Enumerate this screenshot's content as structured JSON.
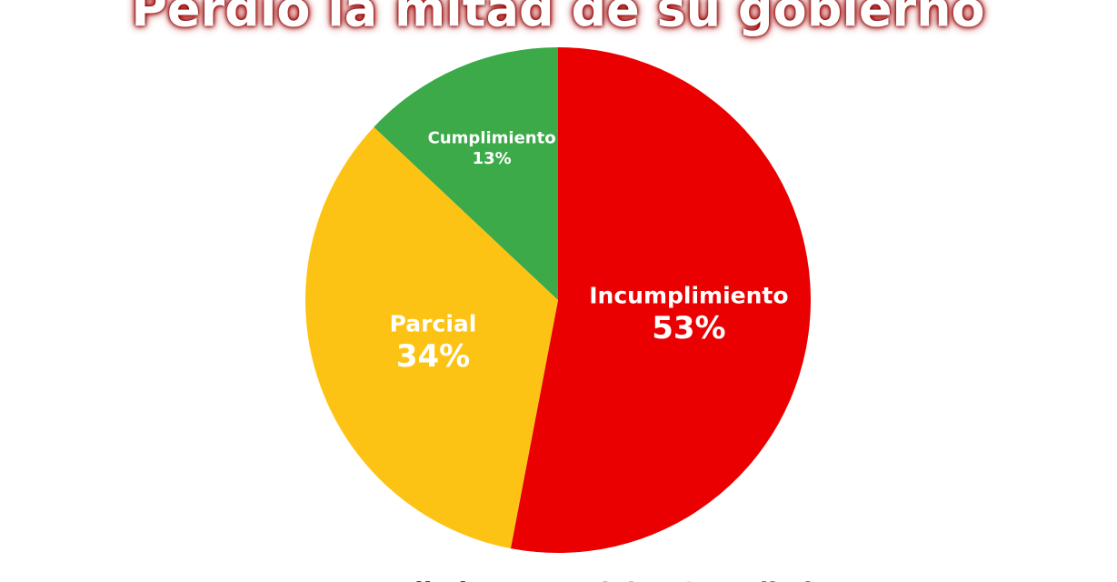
{
  "chart_data": {
    "type": "pie",
    "title": "Perdió la mitad de su gobierno",
    "categories": [
      "Incumplimiento",
      "Parcial",
      "Cumplimiento"
    ],
    "values": [
      53,
      34,
      13
    ],
    "value_labels": [
      "53%",
      "34%",
      "13%"
    ],
    "colors": [
      "#ea0000",
      "#fdc314",
      "#3caa48"
    ],
    "legend": "bottom"
  }
}
